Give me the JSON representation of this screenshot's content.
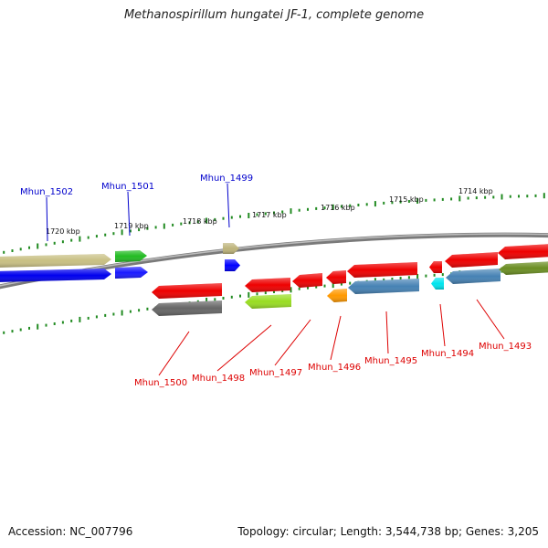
{
  "title": "Methanospirillum hungatei JF-1, complete genome",
  "accession_text": "Accession: NC_007796",
  "summary_text": "Topology: circular; Length: 3,544,738 bp; Genes: 3,205",
  "colors": {
    "tick": "#228B22",
    "backbone": "#7a7a7a",
    "forward_label": "#0000cc",
    "reverse_label": "#dd0000"
  },
  "kbp_ticks": [
    "1720 kbp",
    "1719 kbp",
    "1718 kbp",
    "1717 kbp",
    "1716 kbp",
    "1715 kbp",
    "1714 kbp"
  ],
  "gene_labels": {
    "forward": [
      "Mhun_1502",
      "Mhun_1501",
      "Mhun_1499"
    ],
    "reverse": [
      "Mhun_1500",
      "Mhun_1498",
      "Mhun_1497",
      "Mhun_1496",
      "Mhun_1495",
      "Mhun_1494",
      "Mhun_1493"
    ]
  },
  "features": [
    {
      "id": "f1",
      "color": "#c8bf82",
      "dir": "right"
    },
    {
      "id": "f2",
      "color": "#0000ee",
      "dir": "right"
    },
    {
      "id": "f3",
      "color": "#22bb22",
      "dir": "right"
    },
    {
      "id": "f4",
      "color": "#1a1aff",
      "dir": "right"
    },
    {
      "id": "f5",
      "color": "#bdb37a",
      "dir": "right"
    },
    {
      "id": "f6",
      "color": "#0000ff",
      "dir": "right"
    },
    {
      "id": "f7",
      "color": "#ee0000",
      "dir": "left"
    },
    {
      "id": "f8",
      "color": "#666666",
      "dir": "left"
    },
    {
      "id": "f9",
      "color": "#ee0000",
      "dir": "left"
    },
    {
      "id": "f10",
      "color": "#99dd22",
      "dir": "left"
    },
    {
      "id": "f11",
      "color": "#ee0000",
      "dir": "left"
    },
    {
      "id": "f12",
      "color": "#ee0000",
      "dir": "left"
    },
    {
      "id": "f13",
      "color": "#ff9900",
      "dir": "left"
    },
    {
      "id": "f14",
      "color": "#ee0000",
      "dir": "left"
    },
    {
      "id": "f15",
      "color": "#4682b4",
      "dir": "left"
    },
    {
      "id": "f16",
      "color": "#ee0000",
      "dir": "left"
    },
    {
      "id": "f17",
      "color": "#00e5ee",
      "dir": "left"
    },
    {
      "id": "f18",
      "color": "#ee0000",
      "dir": "left"
    },
    {
      "id": "f19",
      "color": "#4682b4",
      "dir": "left"
    },
    {
      "id": "f20",
      "color": "#ee0000",
      "dir": "left"
    },
    {
      "id": "f21",
      "color": "#6b8e23",
      "dir": "left"
    }
  ]
}
